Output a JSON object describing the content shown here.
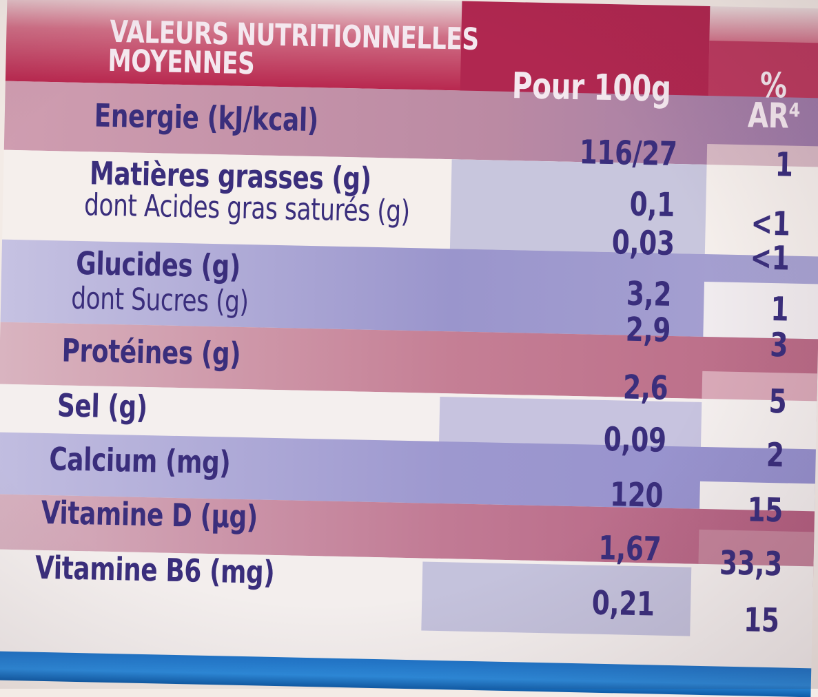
{
  "table": {
    "header": {
      "title_line1": "VALEURS NUTRITIONNELLES",
      "title_line2": "MOYENNES",
      "per100": "Pour 100g",
      "ar_line1": "%",
      "ar_line2": "AR⁴"
    },
    "rows": [
      {
        "label": "Energie (kJ/kcal)",
        "value": "116/27",
        "ar": "1"
      },
      {
        "label": "Matières grasses (g)",
        "value": "0,1",
        "ar": "<1"
      },
      {
        "label": "dont Acides gras saturés (g)",
        "value": "0,03",
        "ar": "<1"
      },
      {
        "label": "Glucides (g)",
        "value": "3,2",
        "ar": "1"
      },
      {
        "label": "dont Sucres (g)",
        "value": "2,9",
        "ar": "3"
      },
      {
        "label": "Protéines (g)",
        "value": "2,6",
        "ar": "5"
      },
      {
        "label": "Sel (g)",
        "value": "0,09",
        "ar": "2"
      },
      {
        "label": "Calcium (mg)",
        "value": "120",
        "ar": "15"
      },
      {
        "label": "Vitamine D (µg)",
        "value": "1,67",
        "ar": "33,3"
      },
      {
        "label": "Vitamine B6 (mg)",
        "value": "0,21",
        "ar": "15"
      }
    ]
  },
  "colors": {
    "header_bg": "#b8284f",
    "text": "#3a2e7c",
    "row_pink": "#c98aa0",
    "row_blue": "#b6b0d8",
    "bottom_strip": "#2c8bdc"
  }
}
